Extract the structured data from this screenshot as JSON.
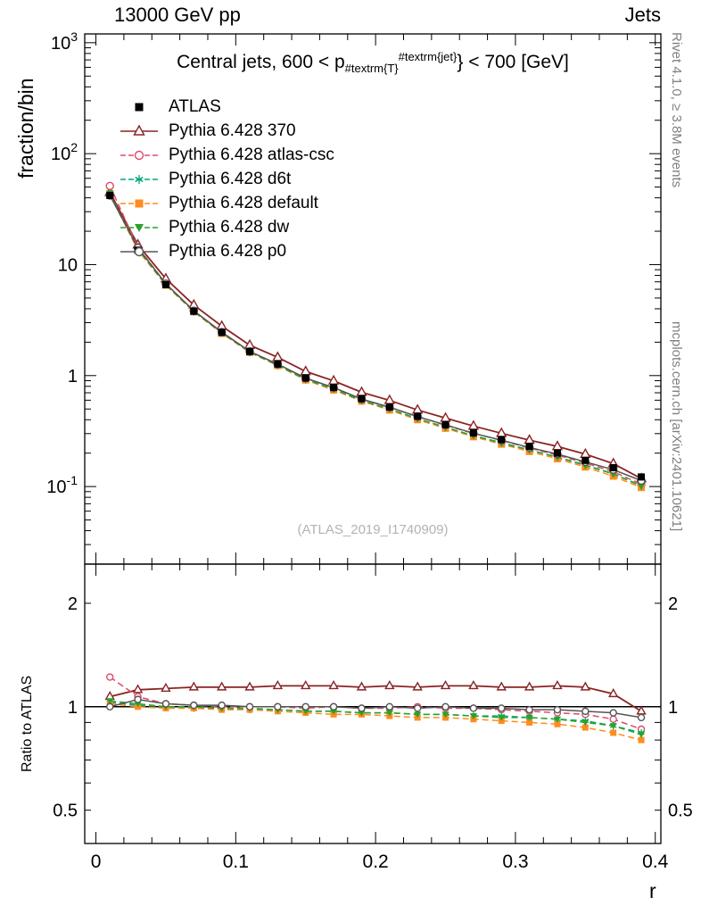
{
  "header": {
    "left": "13000 GeV pp",
    "right": "Jets"
  },
  "title": {
    "pre": "Central jets, 600 < p",
    "sub": "#textrm{T}",
    "sup": "#textrm{jet}",
    "post": "} < 700 [GeV]",
    "raw": "Central jets, 600 < p_{#textrm{T}}^{#textrm{jet}} < 700 [GeV]"
  },
  "watermark": "(ATLAS_2019_I1740909)",
  "side_notes": {
    "top": "Rivet 4.1.0, ≥ 3.8M events",
    "bottom": "mcplots.cern.ch [arXiv:2401.10621]"
  },
  "axes": {
    "x": {
      "label": "r",
      "lim": [
        -0.008,
        0.404
      ],
      "minor_step": 0.02,
      "ticks": [
        {
          "value": 0,
          "label": "0"
        },
        {
          "value": 0.1,
          "label": "0.1"
        },
        {
          "value": 0.2,
          "label": "0.2"
        },
        {
          "value": 0.3,
          "label": "0.3"
        },
        {
          "value": 0.4,
          "label": "0.4"
        }
      ]
    },
    "main": {
      "label": "fraction/bin",
      "scale": "log",
      "lim": [
        0.02,
        1200
      ],
      "ticks": [
        {
          "value": 1000,
          "base": "10",
          "exp": "3"
        },
        {
          "value": 100,
          "base": "10",
          "exp": "2"
        },
        {
          "value": 10,
          "base": "10",
          "exp": ""
        },
        {
          "value": 1,
          "base": "1",
          "exp": ""
        },
        {
          "value": 0.1,
          "base": "10",
          "exp": "-1"
        }
      ]
    },
    "ratio": {
      "label": "Ratio to ATLAS",
      "scale": "log",
      "lim": [
        0.4,
        2.6
      ],
      "ticks": [
        {
          "value": 2,
          "label": "2"
        },
        {
          "value": 1,
          "label": "1"
        },
        {
          "value": 0.5,
          "label": "0.5"
        }
      ]
    }
  },
  "chart_data": {
    "type": "line",
    "title": "Central jets, 600 < p_{#textrm{T}}^{#textrm{jet}} < 700 [GeV]",
    "xlabel": "r",
    "ylabel": "fraction/bin",
    "ratio_ylabel": "Ratio to ATLAS",
    "xlim": [
      -0.008,
      0.404
    ],
    "ylim_main": [
      0.02,
      1200
    ],
    "ylim_ratio": [
      0.4,
      2.6
    ],
    "yscale": "log",
    "x": [
      0.01,
      0.03,
      0.05,
      0.07,
      0.09,
      0.11,
      0.13,
      0.15,
      0.17,
      0.19,
      0.21,
      0.23,
      0.25,
      0.27,
      0.29,
      0.31,
      0.33,
      0.35,
      0.37,
      0.39
    ],
    "series": [
      {
        "name": "ATLAS",
        "color": "#000000",
        "marker": "square-filled",
        "line": "none",
        "fraction": [
          42,
          13.5,
          6.6,
          3.8,
          2.45,
          1.65,
          1.27,
          0.95,
          0.78,
          0.62,
          0.52,
          0.43,
          0.36,
          0.305,
          0.265,
          0.23,
          0.2,
          0.172,
          0.148,
          0.122
        ]
      },
      {
        "name": "Pythia 6.428 370",
        "color": "#8b2323",
        "marker": "triangle-up-open",
        "line": "solid",
        "fraction": [
          44.9,
          15.1,
          7.46,
          4.33,
          2.79,
          1.88,
          1.46,
          1.09,
          0.897,
          0.707,
          0.598,
          0.49,
          0.414,
          0.351,
          0.302,
          0.262,
          0.23,
          0.196,
          0.161,
          0.118
        ],
        "ratio": [
          1.07,
          1.12,
          1.13,
          1.14,
          1.14,
          1.14,
          1.15,
          1.15,
          1.15,
          1.14,
          1.15,
          1.14,
          1.15,
          1.15,
          1.14,
          1.14,
          1.15,
          1.14,
          1.09,
          0.97
        ]
      },
      {
        "name": "Pythia 6.428 atlas-csc",
        "color": "#dd4b6b",
        "marker": "circle-open",
        "line": "dashed",
        "fraction": [
          51.2,
          14.4,
          6.73,
          3.84,
          2.45,
          1.65,
          1.27,
          0.941,
          0.78,
          0.614,
          0.515,
          0.43,
          0.356,
          0.302,
          0.26,
          0.223,
          0.192,
          0.163,
          0.136,
          0.105
        ],
        "ratio": [
          1.22,
          1.07,
          1.02,
          1.01,
          1.0,
          1.0,
          1.0,
          0.99,
          1.0,
          0.99,
          0.99,
          1.0,
          0.99,
          0.99,
          0.98,
          0.97,
          0.96,
          0.95,
          0.92,
          0.86
        ]
      },
      {
        "name": "Pythia 6.428 d6t",
        "color": "#00a878",
        "marker": "star",
        "line": "dashed",
        "fraction": [
          43.3,
          13.6,
          6.6,
          3.76,
          2.43,
          1.62,
          1.24,
          0.922,
          0.757,
          0.595,
          0.499,
          0.409,
          0.342,
          0.287,
          0.249,
          0.214,
          0.184,
          0.157,
          0.13,
          0.102
        ],
        "ratio": [
          1.03,
          1.01,
          1.0,
          0.99,
          0.99,
          0.98,
          0.98,
          0.97,
          0.97,
          0.96,
          0.96,
          0.95,
          0.95,
          0.94,
          0.94,
          0.93,
          0.92,
          0.91,
          0.88,
          0.84
        ]
      },
      {
        "name": "Pythia 6.428 default",
        "color": "#ff8c1e",
        "marker": "square-filled",
        "line": "dashed",
        "fraction": [
          42.8,
          13.5,
          6.53,
          3.76,
          2.4,
          1.62,
          1.23,
          0.912,
          0.741,
          0.589,
          0.489,
          0.4,
          0.335,
          0.281,
          0.241,
          0.207,
          0.178,
          0.15,
          0.124,
          0.098
        ],
        "ratio": [
          1.02,
          1.0,
          0.99,
          0.99,
          0.98,
          0.98,
          0.97,
          0.96,
          0.95,
          0.95,
          0.94,
          0.93,
          0.93,
          0.92,
          0.91,
          0.9,
          0.89,
          0.87,
          0.84,
          0.8
        ]
      },
      {
        "name": "Pythia 6.428 dw",
        "color": "#2aa22a",
        "marker": "triangle-down-filled",
        "line": "dashed",
        "fraction": [
          43.7,
          13.8,
          6.6,
          3.8,
          2.43,
          1.63,
          1.24,
          0.922,
          0.757,
          0.595,
          0.499,
          0.409,
          0.342,
          0.287,
          0.246,
          0.214,
          0.184,
          0.155,
          0.13,
          0.101
        ],
        "ratio": [
          1.04,
          1.02,
          1.0,
          1.0,
          0.99,
          0.99,
          0.98,
          0.97,
          0.97,
          0.96,
          0.96,
          0.95,
          0.95,
          0.94,
          0.93,
          0.93,
          0.92,
          0.9,
          0.88,
          0.83
        ]
      },
      {
        "name": "Pythia 6.428 p0",
        "color": "#555555",
        "marker": "circle-open",
        "line": "solid",
        "fraction": [
          42,
          14.2,
          6.73,
          3.84,
          2.47,
          1.65,
          1.27,
          0.95,
          0.78,
          0.614,
          0.52,
          0.426,
          0.36,
          0.302,
          0.262,
          0.225,
          0.196,
          0.167,
          0.142,
          0.113
        ],
        "ratio": [
          1.0,
          1.05,
          1.02,
          1.01,
          1.01,
          1.0,
          1.0,
          1.0,
          1.0,
          0.99,
          1.0,
          0.99,
          1.0,
          0.99,
          0.99,
          0.98,
          0.98,
          0.97,
          0.96,
          0.93
        ]
      }
    ]
  }
}
